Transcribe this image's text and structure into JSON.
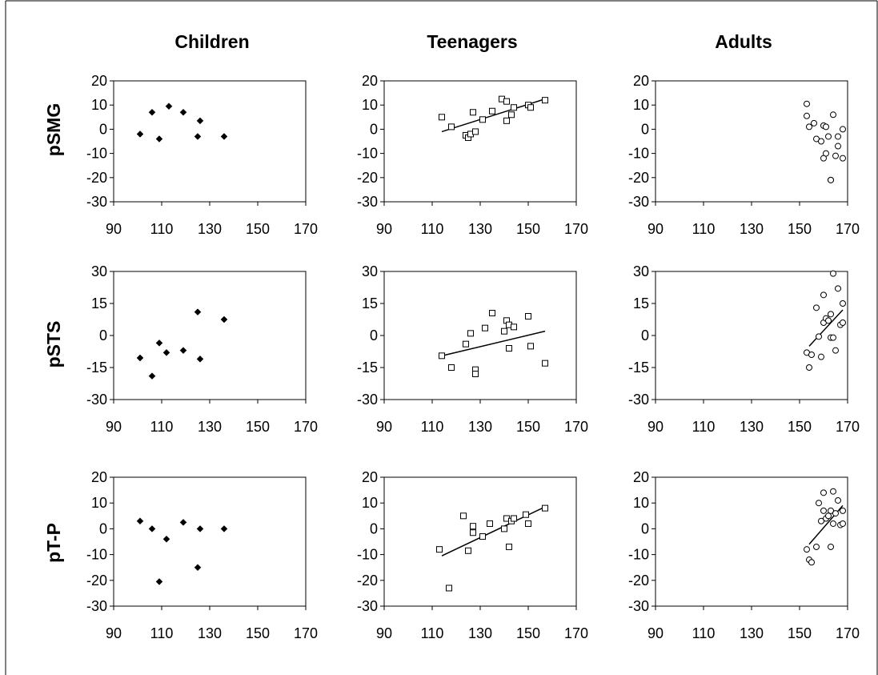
{
  "column_titles": [
    "Children",
    "Teenagers",
    "Adults"
  ],
  "row_titles": [
    "pSMG",
    "pSTS",
    "pT-P"
  ],
  "chart_data": [
    {
      "type": "scatter",
      "row": "pSMG",
      "column": "Children",
      "marker": "filled-diamond",
      "xlim": [
        90,
        170
      ],
      "xticks": [
        90,
        110,
        130,
        150,
        170
      ],
      "ylim": [
        -30,
        20
      ],
      "yticks": [
        -30,
        -20,
        -10,
        0,
        10,
        20
      ],
      "x": [
        101,
        106,
        109,
        113,
        119,
        125,
        126,
        136
      ],
      "y": [
        -2,
        7,
        -4,
        9.5,
        7,
        -3,
        3.5,
        -3
      ],
      "trendline": null
    },
    {
      "type": "scatter",
      "row": "pSMG",
      "column": "Teenagers",
      "marker": "open-square",
      "xlim": [
        90,
        170
      ],
      "xticks": [
        90,
        110,
        130,
        150,
        170
      ],
      "ylim": [
        -30,
        20
      ],
      "yticks": [
        -30,
        -20,
        -10,
        0,
        10,
        20
      ],
      "x": [
        114,
        118,
        124,
        125,
        126,
        127,
        128,
        131,
        135,
        139,
        141,
        143,
        141,
        144,
        150,
        151,
        157
      ],
      "y": [
        5,
        1,
        -2.5,
        -3.5,
        -2,
        7,
        -1,
        4,
        7.5,
        12.5,
        11.5,
        6,
        3.5,
        9,
        10,
        9,
        12
      ],
      "trendline": {
        "x": [
          114,
          157
        ],
        "y": [
          -1,
          12.5
        ]
      }
    },
    {
      "type": "scatter",
      "row": "pSMG",
      "column": "Adults",
      "marker": "open-circle",
      "xlim": [
        90,
        170
      ],
      "xticks": [
        90,
        110,
        130,
        150,
        170
      ],
      "ylim": [
        -30,
        20
      ],
      "yticks": [
        -30,
        -20,
        -10,
        0,
        10,
        20
      ],
      "x": [
        153,
        153,
        154,
        156,
        157,
        159,
        160,
        160,
        161,
        161,
        162,
        163,
        163,
        164,
        165,
        166,
        166,
        168,
        168
      ],
      "y": [
        10.5,
        5.5,
        1,
        2.5,
        -4,
        -5,
        1.5,
        -12,
        1,
        -10,
        -3,
        -21,
        -21,
        6,
        -11,
        -3,
        -7,
        0,
        -12
      ],
      "trendline": null
    },
    {
      "type": "scatter",
      "row": "pSTS",
      "column": "Children",
      "marker": "filled-diamond",
      "xlim": [
        90,
        170
      ],
      "xticks": [
        90,
        110,
        130,
        150,
        170
      ],
      "ylim": [
        -30,
        30
      ],
      "yticks": [
        -30,
        -15,
        0,
        15,
        30
      ],
      "x": [
        101,
        106,
        109,
        112,
        119,
        125,
        126,
        136
      ],
      "y": [
        -10.5,
        -19,
        -3.5,
        -8,
        -7,
        11,
        -11,
        7.5
      ],
      "trendline": null
    },
    {
      "type": "scatter",
      "row": "pSTS",
      "column": "Teenagers",
      "marker": "open-square",
      "xlim": [
        90,
        170
      ],
      "xticks": [
        90,
        110,
        130,
        150,
        170
      ],
      "ylim": [
        -30,
        30
      ],
      "yticks": [
        -30,
        -15,
        0,
        15,
        30
      ],
      "x": [
        114,
        118,
        124,
        126,
        128,
        128,
        132,
        135,
        140,
        141,
        142,
        142,
        144,
        150,
        151,
        157
      ],
      "y": [
        -9.5,
        -15,
        -4,
        1,
        -16,
        -18,
        3.5,
        10.5,
        2,
        7,
        5,
        -6,
        4,
        9,
        -5,
        -13
      ],
      "trendline": {
        "x": [
          114,
          157
        ],
        "y": [
          -9.5,
          2
        ]
      }
    },
    {
      "type": "scatter",
      "row": "pSTS",
      "column": "Adults",
      "marker": "open-circle",
      "xlim": [
        90,
        170
      ],
      "xticks": [
        90,
        110,
        130,
        150,
        170
      ],
      "ylim": [
        -30,
        30
      ],
      "yticks": [
        -30,
        -15,
        0,
        15,
        30
      ],
      "x": [
        153,
        154,
        155,
        157,
        158,
        159,
        160,
        160,
        161,
        162,
        163,
        163,
        164,
        164,
        165,
        166,
        167,
        168,
        168
      ],
      "y": [
        -8,
        -15,
        -9,
        13,
        -0.5,
        -10,
        19,
        6,
        8,
        7,
        -1,
        10,
        29,
        -1,
        -7,
        22,
        5,
        15,
        6
      ],
      "trendline": {
        "x": [
          154,
          168
        ],
        "y": [
          -5,
          12
        ]
      }
    },
    {
      "type": "scatter",
      "row": "pT-P",
      "column": "Children",
      "marker": "filled-diamond",
      "xlim": [
        90,
        170
      ],
      "xticks": [
        90,
        110,
        130,
        150,
        170
      ],
      "ylim": [
        -30,
        20
      ],
      "yticks": [
        -30,
        -20,
        -10,
        0,
        10,
        20
      ],
      "x": [
        101,
        106,
        109,
        112,
        119,
        125,
        126,
        136
      ],
      "y": [
        3,
        0,
        -20.5,
        -4,
        2.5,
        -15,
        0,
        0
      ],
      "trendline": null
    },
    {
      "type": "scatter",
      "row": "pT-P",
      "column": "Teenagers",
      "marker": "open-square",
      "xlim": [
        90,
        170
      ],
      "xticks": [
        90,
        110,
        130,
        150,
        170
      ],
      "ylim": [
        -30,
        20
      ],
      "yticks": [
        -30,
        -20,
        -10,
        0,
        10,
        20
      ],
      "x": [
        113,
        117,
        123,
        125,
        127,
        127,
        131,
        134,
        140,
        141,
        142,
        143,
        144,
        149,
        150,
        157
      ],
      "y": [
        -8,
        -23,
        5,
        -8.5,
        1,
        -1.5,
        -3,
        2,
        0,
        4,
        -7,
        3,
        4,
        5.5,
        2,
        8
      ],
      "trendline": {
        "x": [
          114,
          157
        ],
        "y": [
          -10.5,
          8.5
        ]
      }
    },
    {
      "type": "scatter",
      "row": "pT-P",
      "column": "Adults",
      "marker": "open-circle",
      "xlim": [
        90,
        170
      ],
      "xticks": [
        90,
        110,
        130,
        150,
        170
      ],
      "ylim": [
        -30,
        20
      ],
      "yticks": [
        -30,
        -20,
        -10,
        0,
        10,
        20
      ],
      "x": [
        153,
        154,
        155,
        157,
        158,
        159,
        160,
        160,
        161,
        162,
        163,
        163,
        164,
        164,
        165,
        166,
        167,
        168,
        168
      ],
      "y": [
        -8,
        -12,
        -13,
        -7,
        10,
        3,
        14,
        7,
        4,
        5,
        7,
        -7,
        14.5,
        2,
        6,
        11,
        1.5,
        7,
        2
      ],
      "trendline": {
        "x": [
          154,
          168
        ],
        "y": [
          -6,
          9
        ]
      }
    }
  ]
}
